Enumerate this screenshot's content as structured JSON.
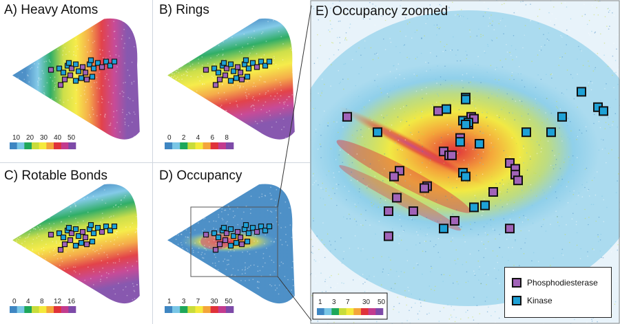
{
  "figure": {
    "panels": [
      {
        "id": "A",
        "title": "A) Heavy Atoms",
        "colorbar": {
          "ticks": [
            "10",
            "20",
            "30",
            "40",
            "50"
          ]
        }
      },
      {
        "id": "B",
        "title": "B) Rings",
        "colorbar": {
          "ticks": [
            "0",
            "2",
            "4",
            "6",
            "8"
          ]
        }
      },
      {
        "id": "C",
        "title": "C) Rotable Bonds",
        "colorbar": {
          "ticks": [
            "0",
            "4",
            "8",
            "12",
            "16"
          ]
        }
      },
      {
        "id": "D",
        "title": "D) Occupancy",
        "colorbar": {
          "ticks": [
            "1",
            "3",
            "7",
            "30",
            "50"
          ]
        }
      },
      {
        "id": "E",
        "title": "E) Occupancy zoomed",
        "colorbar": {
          "ticks": [
            "1",
            "3",
            "7",
            "30",
            "50"
          ]
        }
      }
    ],
    "legend": [
      {
        "label": "Phosphodiesterase",
        "color": "#a163b8"
      },
      {
        "label": "Kinase",
        "color": "#1ea1d6"
      }
    ],
    "palette": [
      "#3e86c2",
      "#79c6e6",
      "#1ea75a",
      "#c8dc3b",
      "#f5ea3b",
      "#f4a53a",
      "#e0323a",
      "#c33b8e",
      "#7d4aa8"
    ]
  },
  "chart_data": [
    {
      "type": "scatter",
      "title": "A) Heavy Atoms",
      "colorbar_ticks": [
        10,
        20,
        30,
        40,
        50
      ]
    },
    {
      "type": "scatter",
      "title": "B) Rings",
      "colorbar_ticks": [
        0,
        2,
        4,
        6,
        8
      ]
    },
    {
      "type": "scatter",
      "title": "C) Rotable Bonds",
      "colorbar_ticks": [
        0,
        4,
        8,
        12,
        16
      ]
    },
    {
      "type": "heatmap",
      "title": "D) Occupancy",
      "colorbar_ticks": [
        1,
        3,
        7,
        30,
        50
      ]
    },
    {
      "type": "heatmap",
      "title": "E) Occupancy zoomed",
      "colorbar_ticks": [
        1,
        3,
        7,
        30,
        50
      ],
      "series": [
        {
          "name": "Phosphodiesterase",
          "points": [
            [
              0.06,
              0.16
            ],
            [
              0.39,
              0.13
            ],
            [
              0.51,
              0.16
            ],
            [
              0.52,
              0.17
            ],
            [
              0.5,
              0.2
            ],
            [
              0.47,
              0.27
            ],
            [
              0.41,
              0.34
            ],
            [
              0.43,
              0.36
            ],
            [
              0.44,
              0.36
            ],
            [
              0.65,
              0.4
            ],
            [
              0.67,
              0.43
            ],
            [
              0.67,
              0.46
            ],
            [
              0.68,
              0.49
            ],
            [
              0.25,
              0.44
            ],
            [
              0.23,
              0.47
            ],
            [
              0.35,
              0.52
            ],
            [
              0.34,
              0.53
            ],
            [
              0.59,
              0.55
            ],
            [
              0.24,
              0.58
            ],
            [
              0.21,
              0.65
            ],
            [
              0.3,
              0.65
            ],
            [
              0.45,
              0.7
            ],
            [
              0.65,
              0.74
            ],
            [
              0.21,
              0.78
            ]
          ]
        },
        {
          "name": "Kinase",
          "points": [
            [
              0.49,
              0.06
            ],
            [
              0.49,
              0.07
            ],
            [
              0.91,
              0.03
            ],
            [
              0.97,
              0.11
            ],
            [
              0.99,
              0.13
            ],
            [
              0.42,
              0.12
            ],
            [
              0.84,
              0.16
            ],
            [
              0.48,
              0.18
            ],
            [
              0.5,
              0.19
            ],
            [
              0.49,
              0.2
            ],
            [
              0.71,
              0.24
            ],
            [
              0.17,
              0.24
            ],
            [
              0.47,
              0.29
            ],
            [
              0.54,
              0.3
            ],
            [
              0.8,
              0.24
            ],
            [
              0.48,
              0.45
            ],
            [
              0.49,
              0.47
            ],
            [
              0.56,
              0.62
            ],
            [
              0.52,
              0.63
            ],
            [
              0.41,
              0.74
            ]
          ]
        }
      ]
    }
  ]
}
